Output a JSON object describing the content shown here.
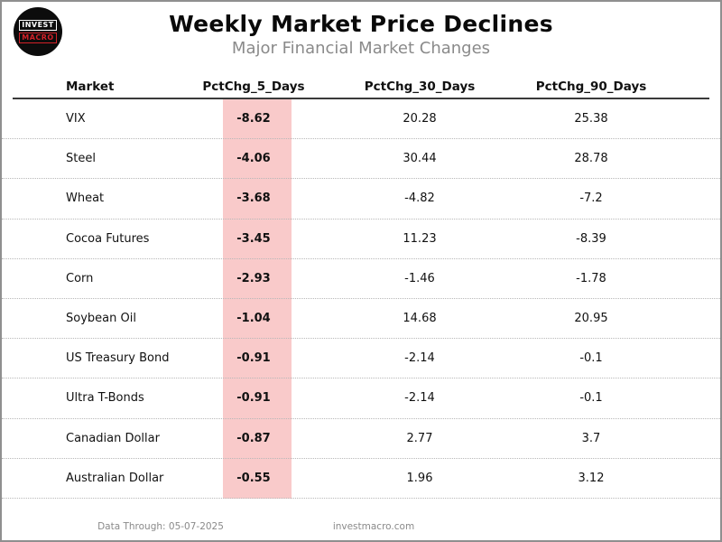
{
  "logo": {
    "line1": "INVEST",
    "line2": "MACRO"
  },
  "header": {
    "title": "Weekly Market Price Declines",
    "subtitle": "Major Financial Market Changes"
  },
  "colors": {
    "highlight_column": "#f9caca",
    "logo_red": "#d22128",
    "subtitle_gray": "#8a8a8a"
  },
  "table": {
    "columns": [
      "Market",
      "PctChg_5_Days",
      "PctChg_30_Days",
      "PctChg_90_Days"
    ],
    "rows": [
      {
        "market": "VIX",
        "pct_5": "-8.62",
        "pct_30": "20.28",
        "pct_90": "25.38"
      },
      {
        "market": "Steel",
        "pct_5": "-4.06",
        "pct_30": "30.44",
        "pct_90": "28.78"
      },
      {
        "market": "Wheat",
        "pct_5": "-3.68",
        "pct_30": "-4.82",
        "pct_90": "-7.2"
      },
      {
        "market": "Cocoa Futures",
        "pct_5": "-3.45",
        "pct_30": "11.23",
        "pct_90": "-8.39"
      },
      {
        "market": "Corn",
        "pct_5": "-2.93",
        "pct_30": "-1.46",
        "pct_90": "-1.78"
      },
      {
        "market": "Soybean Oil",
        "pct_5": "-1.04",
        "pct_30": "14.68",
        "pct_90": "20.95"
      },
      {
        "market": "US Treasury Bond",
        "pct_5": "-0.91",
        "pct_30": "-2.14",
        "pct_90": "-0.1"
      },
      {
        "market": "Ultra T-Bonds",
        "pct_5": "-0.91",
        "pct_30": "-2.14",
        "pct_90": "-0.1"
      },
      {
        "market": "Canadian Dollar",
        "pct_5": "-0.87",
        "pct_30": "2.77",
        "pct_90": "3.7"
      },
      {
        "market": "Australian Dollar",
        "pct_5": "-0.55",
        "pct_30": "1.96",
        "pct_90": "3.12"
      }
    ]
  },
  "footer": {
    "data_through": "Data Through: 05-07-2025",
    "website": "investmacro.com"
  },
  "chart_data": {
    "type": "table",
    "title": "Weekly Market Price Declines",
    "subtitle": "Major Financial Market Changes",
    "columns": [
      "Market",
      "PctChg_5_Days",
      "PctChg_30_Days",
      "PctChg_90_Days"
    ],
    "highlighted_column": "PctChg_5_Days",
    "rows": [
      [
        "VIX",
        -8.62,
        20.28,
        25.38
      ],
      [
        "Steel",
        -4.06,
        30.44,
        28.78
      ],
      [
        "Wheat",
        -3.68,
        -4.82,
        -7.2
      ],
      [
        "Cocoa Futures",
        -3.45,
        11.23,
        -8.39
      ],
      [
        "Corn",
        -2.93,
        -1.46,
        -1.78
      ],
      [
        "Soybean Oil",
        -1.04,
        14.68,
        20.95
      ],
      [
        "US Treasury Bond",
        -0.91,
        -2.14,
        -0.1
      ],
      [
        "Ultra T-Bonds",
        -0.91,
        -2.14,
        -0.1
      ],
      [
        "Canadian Dollar",
        -0.87,
        2.77,
        3.7
      ],
      [
        "Australian Dollar",
        -0.55,
        1.96,
        3.12
      ]
    ]
  }
}
